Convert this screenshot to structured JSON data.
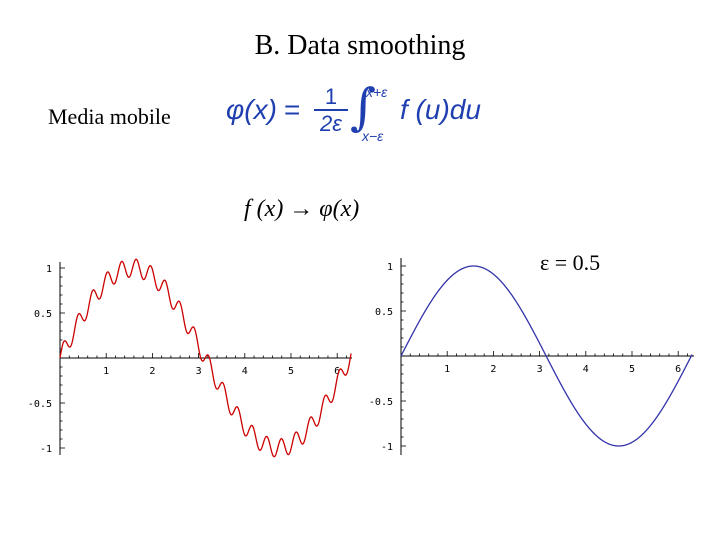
{
  "title": "B. Data smoothing",
  "label": "Media mobile",
  "formula": {
    "phi": "φ(x)",
    "equals": "=",
    "frac_num": "1",
    "frac_den": "2ε",
    "integral": "∫",
    "upper": "x+ε",
    "lower": "x−ε",
    "integrand": "f (u)du"
  },
  "mapping": "f (x) → φ(x)",
  "epsilon_label": "ε = 0.5",
  "colors": {
    "formula": "#1f3fb0",
    "noisy": "#cc0000",
    "smooth": "#3333aa"
  },
  "chart_data": [
    {
      "type": "line",
      "title": "",
      "series": [
        {
          "function": "sin(x) + 0.1*sin(20x)",
          "x_range": [
            0,
            6.3
          ]
        }
      ],
      "xlim": [
        0,
        6.3
      ],
      "ylim": [
        -1.1,
        1.1
      ],
      "xticks": [
        "1",
        "2",
        "3",
        "4",
        "5",
        "6"
      ],
      "yticks": [
        "1",
        "0.5",
        "-0.5",
        "-1"
      ],
      "grid": false
    },
    {
      "type": "line",
      "title": "",
      "series": [
        {
          "function": "sin(x)",
          "x_range": [
            0,
            6.3
          ]
        }
      ],
      "xlim": [
        0,
        6.3
      ],
      "ylim": [
        -1.1,
        1.1
      ],
      "xticks": [
        "1",
        "2",
        "3",
        "4",
        "5",
        "6"
      ],
      "yticks": [
        "1",
        "0.5",
        "-0.5",
        "-1"
      ],
      "grid": false
    }
  ]
}
